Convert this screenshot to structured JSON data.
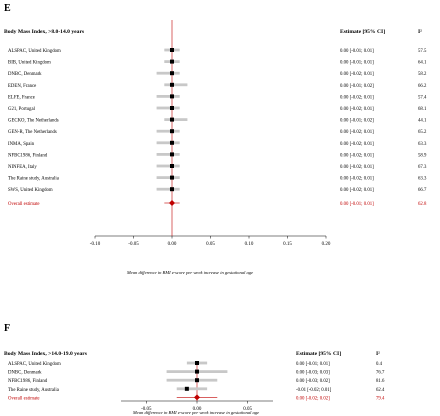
{
  "panels": [
    {
      "panel_label": "E",
      "header": {
        "group": "Body Mass Index, >8.0-14.0 years",
        "estimate": "Estimate [95% CI]",
        "i2": "I²"
      },
      "xlabel": "Mean difference in BMI z-score per week increase in gestational age",
      "colors": {
        "ci": "#c8c8c8",
        "point": "#000000",
        "overall": "#c00000",
        "refline": "#c00000"
      }
    },
    {
      "panel_label": "F",
      "header": {
        "group": "Body Mass Index, >14.0-19.0 years",
        "estimate": "Estimate [95% CI]",
        "i2": "I²"
      },
      "xlabel": "Mean difference in BMI z-score per week increase in gestational age",
      "colors": {
        "ci": "#c8c8c8",
        "point": "#000000",
        "overall": "#c00000",
        "refline": "#c00000"
      }
    }
  ],
  "chart_data": [
    {
      "type": "forest",
      "xlim": [
        -0.1,
        0.2
      ],
      "ticks": [
        "-0.10",
        "-0.05",
        "0.00",
        "0.05",
        "0.10",
        "0.15",
        "0.20"
      ],
      "tick_values": [
        -0.1,
        -0.05,
        0.0,
        0.05,
        0.1,
        0.15,
        0.2
      ],
      "rows": [
        {
          "study": "ALSPAC, United Kingdom",
          "est": 0.0,
          "lo": -0.01,
          "hi": 0.01,
          "text": "0.00 [-0.01; 0.01]",
          "i2": "57.5"
        },
        {
          "study": "BIB, United Kingdom",
          "est": 0.0,
          "lo": -0.01,
          "hi": 0.01,
          "text": "0.00 [-0.01; 0.01]",
          "i2": "64.1"
        },
        {
          "study": "DNBC, Denmark",
          "est": 0.0,
          "lo": -0.02,
          "hi": 0.01,
          "text": "0.00 [-0.02; 0.01]",
          "i2": "58.2"
        },
        {
          "study": "EDEN, France",
          "est": 0.0,
          "lo": -0.01,
          "hi": 0.02,
          "text": "0.00 [-0.01; 0.02]",
          "i2": "66.2"
        },
        {
          "study": "ELFE, France",
          "est": 0.0,
          "lo": -0.02,
          "hi": 0.01,
          "text": "0.00 [-0.02; 0.01]",
          "i2": "57.4"
        },
        {
          "study": "G21, Portugal",
          "est": 0.0,
          "lo": -0.02,
          "hi": 0.01,
          "text": "0.00 [-0.02; 0.01]",
          "i2": "68.1"
        },
        {
          "study": "GECKO, The Netherlands",
          "est": 0.0,
          "lo": -0.01,
          "hi": 0.02,
          "text": "0.00 [-0.01; 0.02]",
          "i2": "44.1"
        },
        {
          "study": "GEN-R, The Netherlands",
          "est": 0.0,
          "lo": -0.02,
          "hi": 0.01,
          "text": "0.00 [-0.02; 0.01]",
          "i2": "65.2"
        },
        {
          "study": "INMA, Spain",
          "est": 0.0,
          "lo": -0.02,
          "hi": 0.01,
          "text": "0.00 [-0.02; 0.01]",
          "i2": "63.3"
        },
        {
          "study": "NFBC1986, Finland",
          "est": 0.0,
          "lo": -0.02,
          "hi": 0.01,
          "text": "0.00 [-0.02; 0.01]",
          "i2": "58.9"
        },
        {
          "study": "NINFEA, Italy",
          "est": 0.0,
          "lo": -0.02,
          "hi": 0.01,
          "text": "0.00 [-0.02; 0.01]",
          "i2": "67.3"
        },
        {
          "study": "The Raine study, Australia",
          "est": 0.0,
          "lo": -0.02,
          "hi": 0.01,
          "text": "0.00 [-0.02; 0.01]",
          "i2": "63.3"
        },
        {
          "study": "SWS, United Kingdom",
          "est": 0.0,
          "lo": -0.02,
          "hi": 0.01,
          "text": "0.00 [-0.02; 0.01]",
          "i2": "66.7"
        }
      ],
      "overall": {
        "study": "Overall estimate",
        "est": 0.0,
        "lo": -0.01,
        "hi": 0.01,
        "text": "0.00 [-0.01; 0.01]",
        "i2": "62.8"
      }
    },
    {
      "type": "forest",
      "xlim": [
        -0.075,
        0.075
      ],
      "ticks": [
        "-0.05",
        "0.00",
        "0.05"
      ],
      "tick_values": [
        -0.05,
        0.0,
        0.05
      ],
      "rows": [
        {
          "study": "ALSPAC, United Kingdom",
          "est": 0.0,
          "lo": -0.01,
          "hi": 0.01,
          "text": "0.00 [-0.01; 0.01]",
          "i2": "0.4"
        },
        {
          "study": "DNBC, Denmark",
          "est": 0.0,
          "lo": -0.03,
          "hi": 0.03,
          "text": "0.00 [-0.03; 0.03]",
          "i2": "76.7"
        },
        {
          "study": "NFBC1986, Finland",
          "est": 0.0,
          "lo": -0.03,
          "hi": 0.02,
          "text": "0.00 [-0.03; 0.02]",
          "i2": "81.6"
        },
        {
          "study": "The Raine study, Australia",
          "est": -0.01,
          "lo": -0.02,
          "hi": 0.01,
          "text": "-0.01 [-0.02; 0.01]",
          "i2": "62.4"
        }
      ],
      "overall": {
        "study": "Overall estimate",
        "est": 0.0,
        "lo": -0.02,
        "hi": 0.02,
        "text": "0.00 [-0.02; 0.02]",
        "i2": "79.4"
      }
    }
  ]
}
